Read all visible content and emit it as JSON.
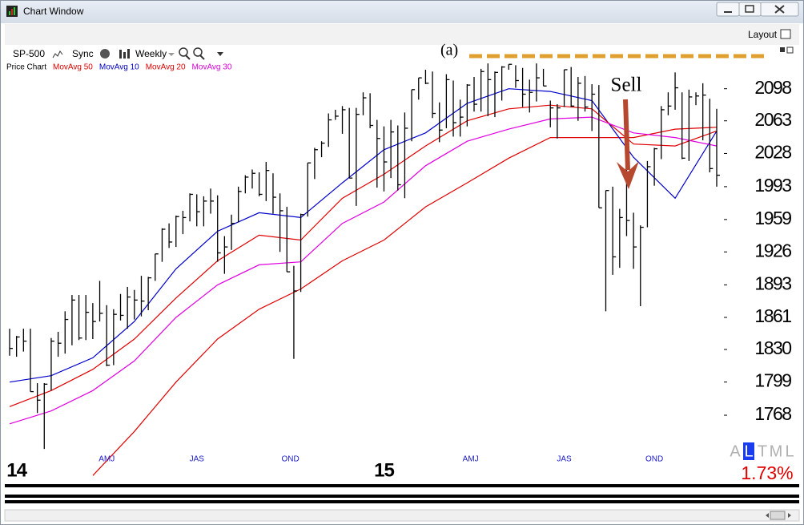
{
  "window": {
    "title": "Chart Window"
  },
  "toolbar": {
    "symbol": "SP-500",
    "sync": "Sync",
    "period": "Weekly",
    "layout": "Layout"
  },
  "panel_label": "(a)",
  "timeframes": {
    "letters": [
      "A",
      "L",
      "T",
      "M",
      "L"
    ],
    "selected": 1
  },
  "change": "1.73%",
  "chart_data": {
    "type": "ohlc",
    "log": true,
    "annotation": "Sell",
    "ylim": [
      1706,
      2127
    ],
    "yticks": [
      2098,
      2063,
      2028,
      1993,
      1959,
      1926,
      1893,
      1861,
      1830,
      1799,
      1768
    ],
    "xlim": [
      -0.5,
      103
    ],
    "xticks": [
      {
        "value": 14,
        "label": "AMJ"
      },
      {
        "value": 27,
        "label": "JAS"
      },
      {
        "value": 40.5,
        "label": "OND"
      },
      {
        "value": 66.5,
        "label": "AMJ"
      },
      {
        "value": 80,
        "label": "JAS"
      },
      {
        "value": 93,
        "label": "OND"
      }
    ],
    "year_ticks": [
      {
        "value": 1,
        "label": "14"
      },
      {
        "value": 54,
        "label": "15"
      }
    ],
    "price": {
      "name": "Price Chart",
      "color": "#000000",
      "high": [
        1850,
        1843,
        1850,
        1850,
        1798,
        1798,
        1841,
        1847,
        1867,
        1883,
        1883,
        1883,
        1875,
        1897,
        1873,
        1869,
        1884,
        1891,
        1888,
        1902,
        1901,
        1924,
        1950,
        1955,
        1963,
        1968,
        1986,
        1985,
        1983,
        1991,
        1984,
        1942,
        1964,
        1993,
        2005,
        2011,
        2008,
        2019,
        2007,
        1986,
        1972,
        1912,
        1965,
        2018,
        2034,
        2041,
        2071,
        2075,
        2079,
        2077,
        2077,
        2094,
        2093,
        2064,
        2057,
        2064,
        2058,
        2072,
        2097,
        2110,
        2119,
        2117,
        2083,
        2114,
        2107,
        2086,
        2103,
        2111,
        2120,
        2126,
        2117,
        2123,
        2125,
        2124,
        2121,
        2108,
        2126,
        2120,
        2085,
        2081,
        2119,
        2122,
        2111,
        2112,
        2103,
        2102,
        1989,
        1993,
        1970,
        2021,
        1966,
        1953,
        2020,
        2034,
        2079,
        2094,
        2116,
        2094,
        2097,
        2094,
        2104,
        2087,
        2076
      ],
      "low": [
        1824,
        1823,
        1828,
        1790,
        1770,
        1737,
        1791,
        1823,
        1826,
        1834,
        1839,
        1839,
        1840,
        1857,
        1814,
        1815,
        1858,
        1850,
        1859,
        1862,
        1868,
        1897,
        1916,
        1930,
        1931,
        1944,
        1957,
        1952,
        1952,
        1965,
        1916,
        1904,
        1928,
        1956,
        1986,
        1991,
        1983,
        1978,
        1965,
        1926,
        1906,
        1821,
        1886,
        1962,
        2001,
        2024,
        2035,
        2064,
        2049,
        2002,
        1973,
        2069,
        2055,
        1992,
        1988,
        2002,
        1989,
        1981,
        2041,
        2086,
        2103,
        2066,
        2040,
        2055,
        2046,
        2046,
        2057,
        2073,
        2073,
        2068,
        2067,
        2085,
        2119,
        2099,
        2078,
        2072,
        2084,
        2101,
        2056,
        2044,
        2078,
        2078,
        2063,
        2073,
        2052,
        1971,
        1867,
        1903,
        1910,
        1942,
        1909,
        1872,
        1951,
        1994,
        2022,
        2069,
        2075,
        2022,
        2020,
        2080,
        2042,
        2008,
        1993
      ],
      "close": [
        1831,
        1842,
        1838,
        1790,
        1782,
        1797,
        1838,
        1836,
        1859,
        1878,
        1841,
        1866,
        1857,
        1865,
        1815,
        1864,
        1863,
        1881,
        1878,
        1877,
        1900,
        1924,
        1949,
        1936,
        1962,
        1961,
        1985,
        1967,
        1978,
        1978,
        1925,
        1931,
        1955,
        1988,
        2003,
        2007,
        1985,
        2010,
        1982,
        1968,
        1906,
        1887,
        1964,
        2018,
        2032,
        2039,
        2064,
        2068,
        2075,
        2002,
        2070,
        2088,
        2058,
        2044,
        2019,
        2051,
        1995,
        2055,
        2097,
        2110,
        2104,
        2071,
        2053,
        2108,
        2061,
        2067,
        2102,
        2081,
        2117,
        2108,
        2116,
        2122,
        2125,
        2107,
        2092,
        2094,
        2110,
        2101,
        2077,
        2077,
        2119,
        2079,
        2104,
        2078,
        2092,
        1971,
        1989,
        1921,
        1961,
        1958,
        1931,
        1951,
        2014,
        2033,
        2075,
        2079,
        2099,
        2023,
        2089,
        2090,
        2091,
        2012,
        2005
      ]
    },
    "ma_x": [
      0,
      6,
      12,
      18,
      24,
      30,
      36,
      42,
      48,
      54,
      60,
      66,
      72,
      78,
      84,
      90,
      96,
      102
    ],
    "series": [
      {
        "name": "MovAvg 50",
        "color": "#e00000",
        "values": [
          null,
          null,
          1713,
          1753,
          1799,
          1840,
          1869,
          1889,
          1917,
          1938,
          1972,
          1997,
          2023,
          2045,
          2045,
          2045,
          2054,
          2056
        ]
      },
      {
        "name": "MovAvg 10",
        "color": "#0000cc",
        "values": [
          1799,
          1805,
          1822,
          1857,
          1909,
          1947,
          1966,
          1961,
          1997,
          2032,
          2050,
          2082,
          2098,
          2095,
          2085,
          2024,
          1981,
          2052
        ]
      },
      {
        "name": "MovAvg 20",
        "color": "#e00000",
        "values": [
          1776,
          1791,
          1811,
          1840,
          1880,
          1917,
          1943,
          1938,
          1981,
          2006,
          2036,
          2063,
          2076,
          2080,
          2076,
          2038,
          2036,
          2052
        ]
      },
      {
        "name": "MovAvg 30",
        "color": "#e000e0",
        "values": [
          1760,
          1772,
          1791,
          1819,
          1861,
          1893,
          1913,
          1916,
          1955,
          1977,
          2015,
          2041,
          2054,
          2065,
          2067,
          2050,
          2045,
          2036
        ]
      }
    ]
  }
}
